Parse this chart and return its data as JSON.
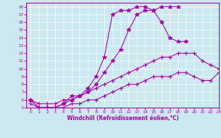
{
  "xlabel": "Windchill (Refroidissement éolien,°C)",
  "bg_color": "#cce8f0",
  "line_color": "#aa00aa",
  "xlim": [
    -0.5,
    23
  ],
  "ylim": [
    5,
    18.5
  ],
  "xticks": [
    0,
    1,
    2,
    3,
    4,
    5,
    6,
    7,
    8,
    9,
    10,
    11,
    12,
    13,
    14,
    15,
    16,
    17,
    18,
    19,
    20,
    21,
    22,
    23
  ],
  "yticks": [
    5,
    6,
    7,
    8,
    9,
    10,
    11,
    12,
    13,
    14,
    15,
    16,
    17,
    18
  ],
  "lines": [
    {
      "x": [
        0,
        1,
        2,
        3,
        4,
        5,
        6,
        7,
        8,
        9,
        10,
        11,
        12,
        13,
        14,
        15,
        16,
        17,
        18
      ],
      "y": [
        6,
        5,
        5,
        5,
        5.5,
        6,
        6.5,
        7,
        8,
        9.5,
        11,
        12.5,
        15,
        17,
        17.5,
        17.5,
        18,
        18,
        18
      ],
      "marker": "*",
      "ms": 4
    },
    {
      "x": [
        0,
        1,
        2,
        3,
        4,
        5,
        6,
        7,
        8,
        9,
        10,
        11,
        12,
        13,
        14,
        15,
        16,
        17,
        18,
        19
      ],
      "y": [
        6,
        5,
        5,
        5,
        5.5,
        6.5,
        6.5,
        7.5,
        9,
        11.5,
        17,
        17.5,
        17.5,
        18,
        18,
        17.5,
        16,
        14,
        13.5,
        13.5
      ],
      "marker": "*",
      "ms": 4
    },
    {
      "x": [
        0,
        1,
        2,
        3,
        4,
        5,
        6,
        7,
        8,
        9,
        10,
        11,
        12,
        13,
        14,
        15,
        16,
        17,
        18,
        19,
        20,
        21,
        22,
        23
      ],
      "y": [
        6,
        5.5,
        5.5,
        5.5,
        6,
        6,
        6.5,
        7,
        7.5,
        8,
        8.5,
        9,
        9.5,
        10,
        10.5,
        11,
        11.5,
        11.5,
        12,
        12,
        12,
        11,
        10.5,
        10
      ],
      "marker": "+",
      "ms": 4
    },
    {
      "x": [
        0,
        1,
        2,
        3,
        4,
        5,
        6,
        7,
        8,
        9,
        10,
        11,
        12,
        13,
        14,
        15,
        16,
        17,
        18,
        19,
        20,
        21,
        22,
        23
      ],
      "y": [
        5.5,
        5,
        5,
        5,
        5,
        5.5,
        5.5,
        6,
        6,
        6.5,
        7,
        7.5,
        8,
        8,
        8.5,
        9,
        9,
        9,
        9.5,
        9.5,
        9,
        8.5,
        8.5,
        9.5
      ],
      "marker": "+",
      "ms": 4
    }
  ]
}
